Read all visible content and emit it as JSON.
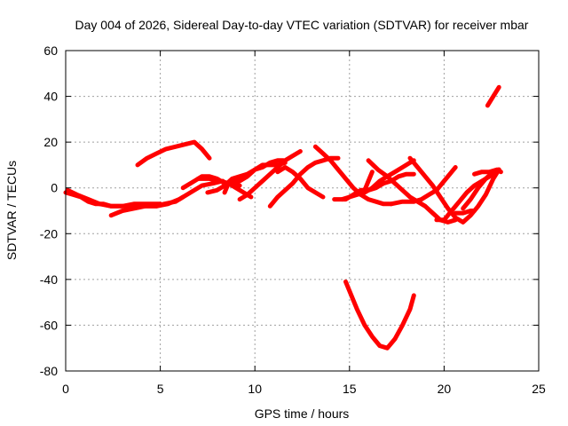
{
  "chart_data": {
    "type": "line",
    "title": "Day 004 of 2026, Sidereal Day-to-day VTEC variation (SDTVAR) for receiver mbar",
    "xlabel": "GPS time / hours",
    "ylabel": "SDTVAR / TECUs",
    "xlim": [
      0,
      25
    ],
    "ylim": [
      -80,
      60
    ],
    "xticks": [
      0,
      5,
      10,
      15,
      20,
      25
    ],
    "yticks": [
      -80,
      -60,
      -40,
      -20,
      0,
      20,
      40,
      60
    ],
    "grid": true,
    "color": "#ff0000",
    "series": [
      {
        "values": [
          [
            0.0,
            -2
          ],
          [
            0.4,
            -3
          ],
          [
            0.8,
            -4
          ],
          [
            1.2,
            -6
          ],
          [
            1.6,
            -7
          ],
          [
            2.0,
            -7
          ],
          [
            2.4,
            -8
          ],
          [
            3.0,
            -8
          ],
          [
            3.6,
            -7
          ],
          [
            4.2,
            -7
          ],
          [
            4.8,
            -7
          ],
          [
            5.0,
            -7
          ]
        ]
      },
      {
        "values": [
          [
            0.1,
            -1
          ],
          [
            0.6,
            -3
          ],
          [
            1.2,
            -5
          ],
          [
            1.8,
            -7
          ],
          [
            2.4,
            -8
          ],
          [
            3.0,
            -8
          ],
          [
            3.6,
            -8
          ],
          [
            4.2,
            -8
          ],
          [
            4.8,
            -8
          ],
          [
            5.2,
            -7
          ],
          [
            5.8,
            -6
          ],
          [
            6.2,
            -4
          ]
        ]
      },
      {
        "values": [
          [
            2.4,
            -12
          ],
          [
            3.0,
            -10
          ],
          [
            3.6,
            -9
          ],
          [
            4.2,
            -8
          ],
          [
            4.8,
            -8
          ],
          [
            5.4,
            -7
          ],
          [
            6.0,
            -5
          ],
          [
            6.6,
            -2
          ],
          [
            7.2,
            1
          ],
          [
            7.8,
            2
          ],
          [
            8.3,
            3
          ]
        ]
      },
      {
        "values": [
          [
            3.8,
            10
          ],
          [
            4.3,
            13
          ],
          [
            4.8,
            15
          ],
          [
            5.3,
            17
          ],
          [
            5.8,
            18
          ],
          [
            6.3,
            19
          ],
          [
            6.8,
            20
          ],
          [
            7.2,
            17
          ],
          [
            7.6,
            13
          ]
        ]
      },
      {
        "values": [
          [
            6.2,
            0
          ],
          [
            6.8,
            3
          ],
          [
            7.2,
            5
          ],
          [
            7.6,
            5
          ],
          [
            8.0,
            4
          ],
          [
            8.4,
            2
          ],
          [
            8.8,
            2
          ],
          [
            9.2,
            1
          ]
        ]
      },
      {
        "values": [
          [
            7.0,
            4
          ],
          [
            7.6,
            4
          ],
          [
            8.2,
            3
          ],
          [
            8.6,
            2
          ],
          [
            9.0,
            0
          ],
          [
            9.4,
            -2
          ],
          [
            9.8,
            -4
          ]
        ]
      },
      {
        "values": [
          [
            7.5,
            -2
          ],
          [
            8.0,
            -1
          ],
          [
            8.4,
            1
          ],
          [
            8.8,
            4
          ],
          [
            9.2,
            5
          ],
          [
            9.6,
            6
          ],
          [
            10.0,
            8
          ],
          [
            10.4,
            10
          ],
          [
            10.8,
            10
          ],
          [
            11.2,
            10
          ],
          [
            11.6,
            11
          ]
        ]
      },
      {
        "values": [
          [
            8.4,
            -2
          ],
          [
            8.6,
            2
          ],
          [
            8.9,
            3
          ],
          [
            9.2,
            3
          ],
          [
            9.6,
            5
          ],
          [
            10.0,
            8
          ],
          [
            10.4,
            9
          ],
          [
            10.8,
            11
          ],
          [
            11.2,
            12
          ],
          [
            11.5,
            12
          ]
        ]
      },
      {
        "values": [
          [
            9.2,
            -5
          ],
          [
            9.6,
            -3
          ],
          [
            10.0,
            0
          ],
          [
            10.4,
            3
          ],
          [
            10.8,
            6
          ],
          [
            11.2,
            9
          ],
          [
            11.6,
            12
          ],
          [
            12.0,
            14
          ],
          [
            12.4,
            16
          ]
        ]
      },
      {
        "values": [
          [
            10.8,
            -8
          ],
          [
            11.2,
            -4
          ],
          [
            11.6,
            -1
          ],
          [
            12.0,
            2
          ],
          [
            12.4,
            6
          ],
          [
            12.8,
            9
          ],
          [
            13.2,
            11
          ],
          [
            13.6,
            12
          ],
          [
            14.0,
            13
          ],
          [
            14.4,
            13
          ]
        ]
      },
      {
        "values": [
          [
            11.2,
            7
          ],
          [
            11.6,
            9
          ],
          [
            12.0,
            7
          ],
          [
            12.4,
            4
          ],
          [
            12.8,
            0
          ],
          [
            13.2,
            -2
          ],
          [
            13.6,
            -4
          ]
        ]
      },
      {
        "values": [
          [
            13.2,
            18
          ],
          [
            13.6,
            15
          ],
          [
            14.0,
            12
          ],
          [
            14.4,
            8
          ],
          [
            14.8,
            4
          ],
          [
            15.2,
            0
          ],
          [
            15.6,
            -3
          ],
          [
            16.0,
            -5
          ],
          [
            16.4,
            -6
          ],
          [
            16.8,
            -7
          ],
          [
            17.2,
            -7
          ]
        ]
      },
      {
        "values": [
          [
            14.2,
            -5
          ],
          [
            14.8,
            -5
          ],
          [
            15.2,
            -3
          ],
          [
            15.6,
            -1
          ],
          [
            16.0,
            -1
          ],
          [
            16.4,
            0
          ],
          [
            16.8,
            2
          ],
          [
            17.2,
            3
          ],
          [
            17.6,
            5
          ],
          [
            18.0,
            6
          ],
          [
            18.4,
            6
          ]
        ]
      },
      {
        "values": [
          [
            14.6,
            -5
          ],
          [
            15.0,
            -4
          ],
          [
            15.4,
            -3
          ],
          [
            15.8,
            -2
          ],
          [
            16.2,
            0
          ],
          [
            16.6,
            3
          ],
          [
            17.0,
            5
          ],
          [
            17.4,
            7
          ],
          [
            17.8,
            9
          ],
          [
            18.2,
            11
          ],
          [
            18.4,
            12
          ]
        ]
      },
      {
        "values": [
          [
            15.6,
            -3
          ],
          [
            15.8,
            -1
          ],
          [
            16.0,
            3
          ],
          [
            16.2,
            7
          ]
        ]
      },
      {
        "values": [
          [
            16.0,
            12
          ],
          [
            16.5,
            8
          ],
          [
            17.0,
            5
          ],
          [
            17.4,
            2
          ],
          [
            17.8,
            -1
          ],
          [
            18.2,
            -4
          ],
          [
            18.6,
            -6
          ],
          [
            19.0,
            -8
          ],
          [
            19.4,
            -11
          ],
          [
            19.8,
            -14
          ],
          [
            20.2,
            -15
          ],
          [
            20.6,
            -14
          ]
        ]
      },
      {
        "values": [
          [
            17.2,
            -7
          ],
          [
            17.8,
            -6
          ],
          [
            18.4,
            -6
          ],
          [
            18.8,
            -5
          ],
          [
            19.2,
            -3
          ],
          [
            19.6,
            -1
          ],
          [
            20.0,
            3
          ],
          [
            20.4,
            7
          ],
          [
            20.6,
            9
          ]
        ]
      },
      {
        "values": [
          [
            18.2,
            13
          ],
          [
            18.6,
            9
          ],
          [
            19.0,
            5
          ],
          [
            19.4,
            1
          ],
          [
            19.8,
            -4
          ],
          [
            20.2,
            -9
          ],
          [
            20.6,
            -13
          ],
          [
            21.0,
            -15
          ],
          [
            21.4,
            -12
          ],
          [
            21.8,
            -8
          ],
          [
            22.2,
            -3
          ],
          [
            22.6,
            4
          ],
          [
            22.9,
            8
          ]
        ]
      },
      {
        "values": [
          [
            19.6,
            -14
          ],
          [
            20.0,
            -14
          ],
          [
            20.4,
            -10
          ],
          [
            20.8,
            -6
          ],
          [
            21.2,
            -2
          ],
          [
            21.6,
            1
          ],
          [
            22.0,
            3
          ],
          [
            22.4,
            5
          ],
          [
            22.8,
            7
          ]
        ]
      },
      {
        "values": [
          [
            20.6,
            -11
          ],
          [
            21.0,
            -11
          ],
          [
            21.4,
            -10
          ],
          [
            21.6,
            -10
          ]
        ]
      },
      {
        "values": [
          [
            21.0,
            -9
          ],
          [
            21.4,
            -5
          ],
          [
            21.8,
            0
          ],
          [
            22.2,
            4
          ],
          [
            22.6,
            7
          ],
          [
            22.9,
            8
          ]
        ]
      },
      {
        "values": [
          [
            21.6,
            6
          ],
          [
            22.0,
            7
          ],
          [
            22.4,
            7
          ],
          [
            22.8,
            8
          ],
          [
            23.0,
            7
          ]
        ]
      },
      {
        "values": [
          [
            22.3,
            36
          ],
          [
            22.6,
            40
          ],
          [
            22.9,
            44
          ]
        ]
      },
      {
        "values": [
          [
            14.8,
            -41
          ],
          [
            15.1,
            -47
          ],
          [
            15.4,
            -53
          ],
          [
            15.8,
            -60
          ],
          [
            16.2,
            -65
          ],
          [
            16.6,
            -69
          ],
          [
            17.0,
            -70
          ],
          [
            17.4,
            -66
          ],
          [
            17.8,
            -60
          ],
          [
            18.2,
            -53
          ],
          [
            18.4,
            -47
          ]
        ]
      }
    ]
  }
}
